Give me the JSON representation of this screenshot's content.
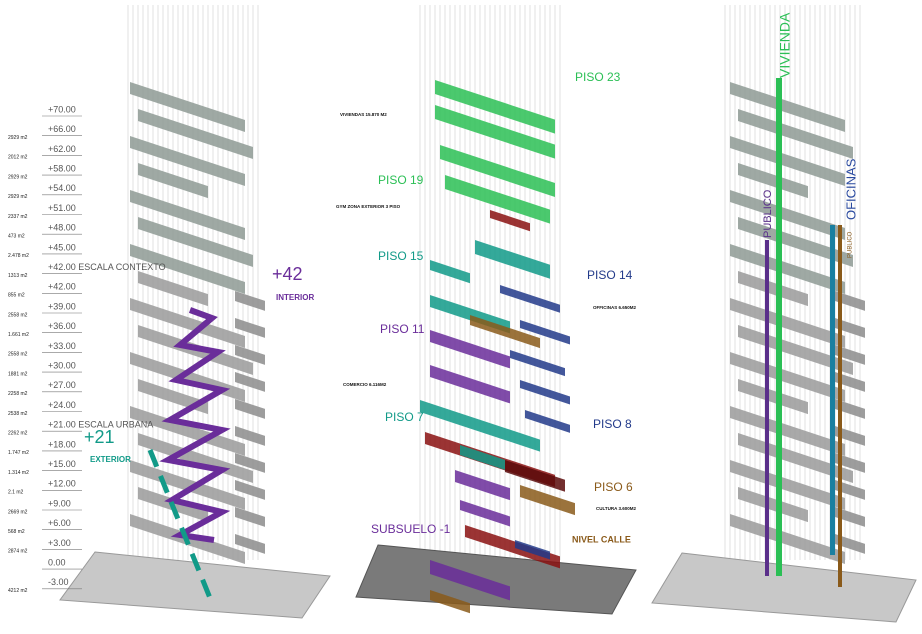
{
  "left": {
    "levels": [
      {
        "area": "",
        "level": "+70.00"
      },
      {
        "area": "2929 m2",
        "level": "+66.00"
      },
      {
        "area": "2012 m2",
        "level": "+62.00"
      },
      {
        "area": "2929 m2",
        "level": "+58.00"
      },
      {
        "area": "2929 m2",
        "level": "+54.00"
      },
      {
        "area": "2337 m2",
        "level": "+51.00"
      },
      {
        "area": "473 m2",
        "level": "+48.00"
      },
      {
        "area": "2.478 m2",
        "level": "+45.00"
      },
      {
        "area": "1313 m2",
        "level": "+42.00 ESCALA CONTEXTO"
      },
      {
        "area": "855 m2",
        "level": "+42.00"
      },
      {
        "area": "2558 m2",
        "level": "+39.00"
      },
      {
        "area": "1.661 m2",
        "level": "+36.00"
      },
      {
        "area": "2558 m2",
        "level": "+33.00"
      },
      {
        "area": "1881 m2",
        "level": "+30.00"
      },
      {
        "area": "2258 m2",
        "level": "+27.00"
      },
      {
        "area": "2538 m2",
        "level": "+24.00"
      },
      {
        "area": "2262 m2",
        "level": "+21.00 ESCALA URBANA"
      },
      {
        "area": "1.747 m2",
        "level": "+18.00"
      },
      {
        "area": "1.314 m2",
        "level": "+15.00"
      },
      {
        "area": "2.1 m2",
        "level": "+12.00"
      },
      {
        "area": "2669 m2",
        "level": "+9.00"
      },
      {
        "area": "568 m2",
        "level": "+6.00"
      },
      {
        "area": "2874 m2",
        "level": "+3.00"
      },
      {
        "area": "",
        "level": "0.00"
      },
      {
        "area": "4212 m2",
        "level": "-3.00"
      }
    ],
    "callouts": [
      {
        "value": "+42",
        "label": "INTERIOR"
      },
      {
        "value": "+21",
        "label": "EXTERIOR"
      }
    ]
  },
  "middle": {
    "floors": [
      "PISO 23",
      "PISO 19",
      "PISO 15",
      "PISO 14",
      "PISO 11",
      "PISO 7",
      "PISO 8",
      "PISO 6",
      "SUBSUELO -1",
      "NIVEL CALLE"
    ],
    "notes": [
      "VIVIENDAS 15.870 M2",
      "GYM ZONA EXTERIOR 3 PISO",
      "OFFICINAS 6.650M2",
      "COMERCIO 6.116M2",
      "CULTURA 3.600M2"
    ]
  },
  "right": {
    "bands": [
      "VIVIENDA",
      "PUBLICO",
      "OFICINAS",
      "PUBLICO"
    ]
  }
}
